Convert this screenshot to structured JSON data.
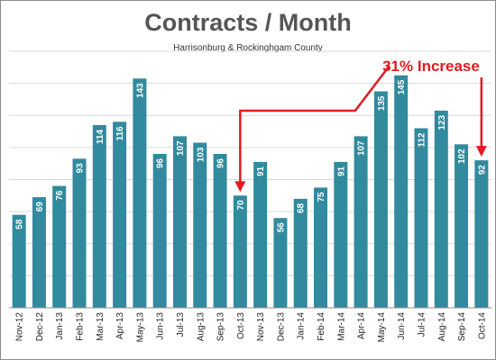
{
  "chart_data": {
    "type": "bar",
    "title": "Contracts / Month",
    "subtitle": "Harrisonburg & Rockinghgam County",
    "categories": [
      "Nov-12",
      "Dec-12",
      "Jan-13",
      "Feb-13",
      "Mar-13",
      "Apr-13",
      "May-13",
      "Jun-13",
      "Jul-13",
      "Aug-13",
      "Sep-13",
      "Oct-13",
      "Nov-13",
      "Dec-13",
      "Jan-14",
      "Feb-14",
      "Mar-14",
      "Apr-14",
      "May-14",
      "Jun-14",
      "Jul-14",
      "Aug-14",
      "Sep-14",
      "Oct-14"
    ],
    "values": [
      58,
      69,
      76,
      93,
      114,
      116,
      143,
      96,
      107,
      103,
      96,
      70,
      91,
      56,
      68,
      75,
      91,
      107,
      135,
      145,
      112,
      123,
      102,
      92
    ],
    "ylim": [
      0,
      160
    ],
    "grid": true,
    "legend": "none",
    "annotation": {
      "text": "31% Increase",
      "from": "Oct-13",
      "to": "Oct-14"
    },
    "bar_color": "#318a9d",
    "annotation_color": "#e01b22",
    "grid_color": "#d9d9d9"
  }
}
